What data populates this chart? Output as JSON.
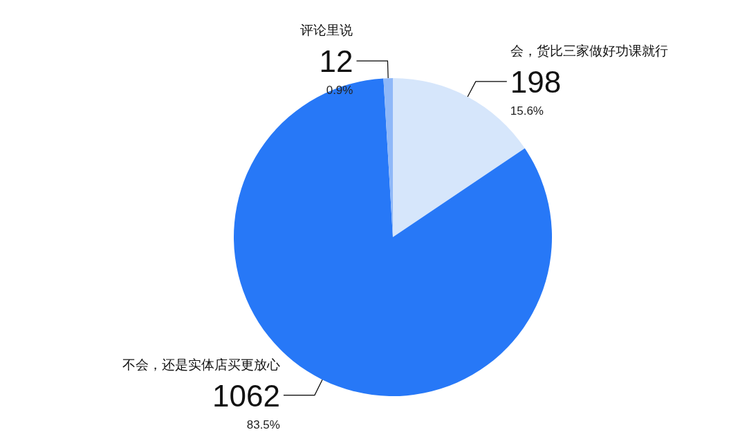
{
  "chart_data": {
    "type": "pie",
    "categories": [
      "会，货比三家做好功课就行",
      "不会，还是实体店买更放心",
      "评论里说"
    ],
    "values": [
      198,
      1062,
      12
    ],
    "colors": [
      "#d6e6fb",
      "#2778f7",
      "#8fb8f8"
    ],
    "data_labels": true,
    "annotations": [
      "15.6%",
      "83.5%",
      "0.9%"
    ]
  }
}
